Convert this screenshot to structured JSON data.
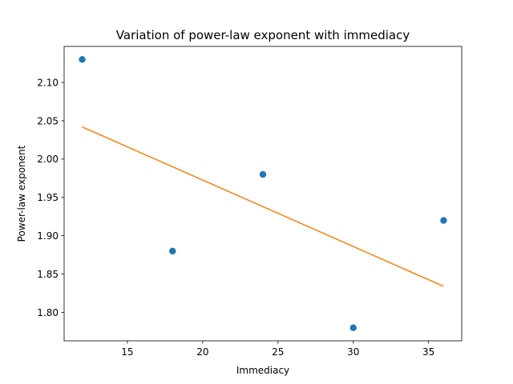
{
  "chart_data": {
    "type": "scatter",
    "title": "Variation of power-law exponent with immediacy",
    "xlabel": "Immediacy",
    "ylabel": "Power-law exponent",
    "xlim": [
      10.8,
      37.2
    ],
    "ylim": [
      1.763,
      2.147
    ],
    "xticks": [
      15,
      20,
      25,
      30,
      35
    ],
    "yticks": [
      1.8,
      1.85,
      1.9,
      1.95,
      2.0,
      2.05,
      2.1
    ],
    "ytick_labels": [
      "1.80",
      "1.85",
      "1.90",
      "1.95",
      "2.00",
      "2.05",
      "2.10"
    ],
    "grid": false,
    "series": [
      {
        "kind": "scatter",
        "color": "#1f77b4",
        "x": [
          12,
          18,
          24,
          30,
          36
        ],
        "y": [
          2.13,
          1.88,
          1.98,
          1.78,
          1.92
        ]
      },
      {
        "kind": "line",
        "color": "#ff7f0e",
        "x": [
          12,
          36
        ],
        "y": [
          2.042,
          1.834
        ]
      }
    ]
  }
}
